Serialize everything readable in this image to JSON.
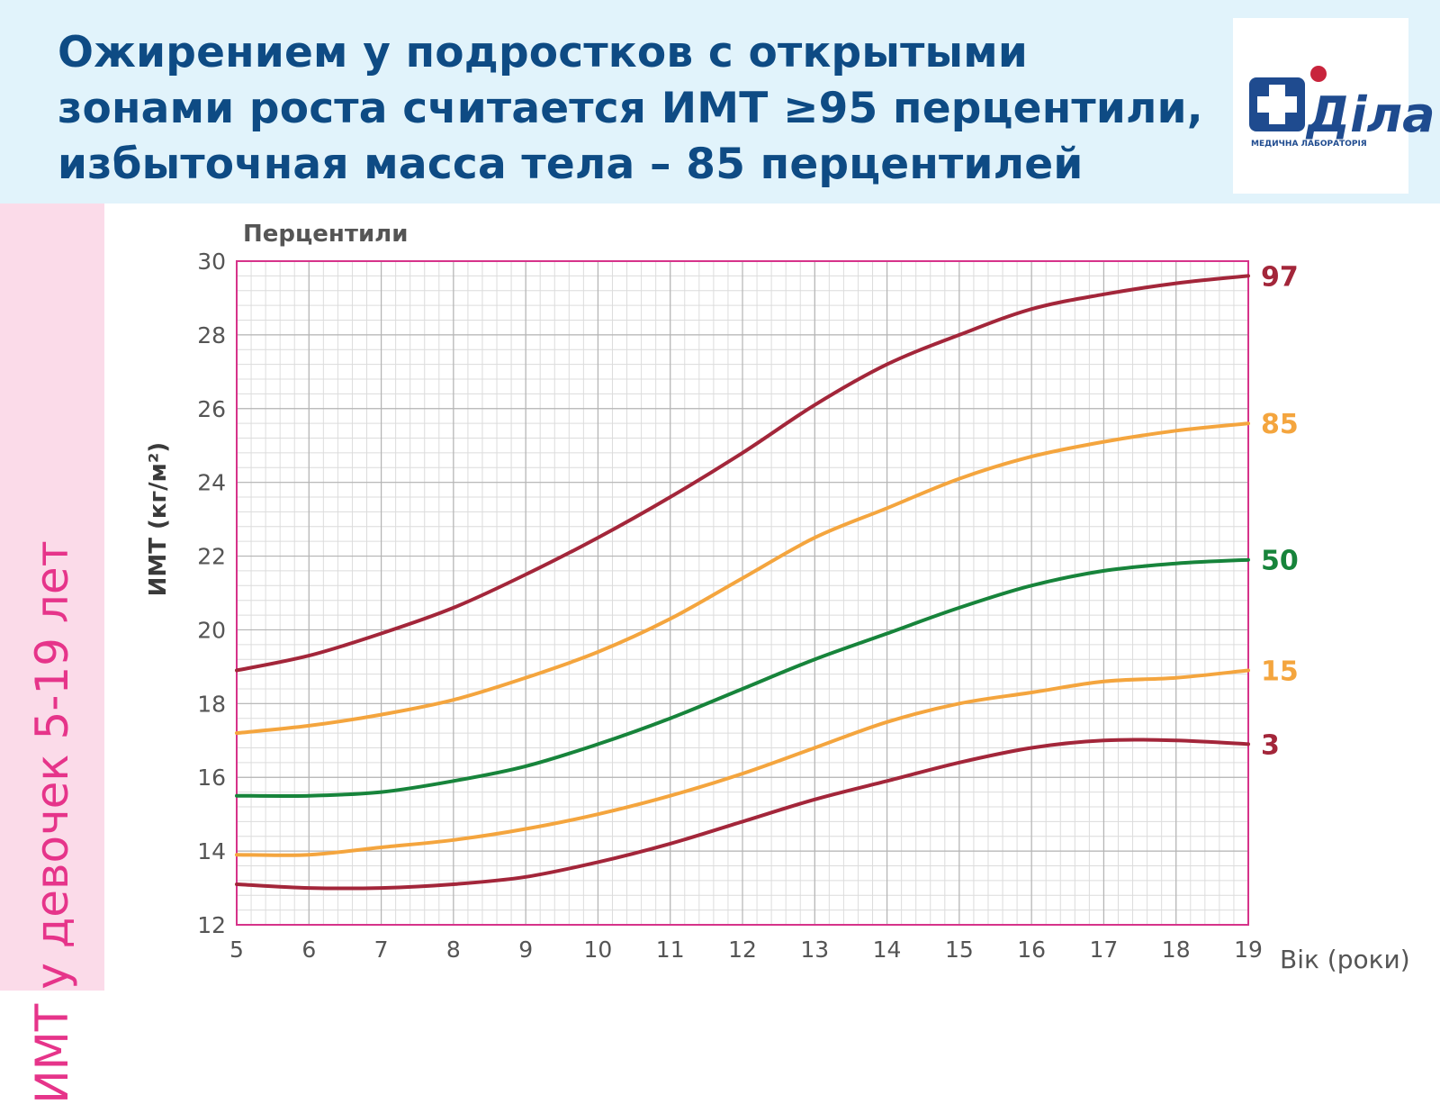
{
  "header": {
    "title_lines": [
      "Ожирением у подростков с открытыми",
      "зонами роста считается ИМТ ≥95 перцентили,",
      "избыточная масса тела – 85 перцентилей"
    ],
    "logo_text": "Діла",
    "logo_subtext": "МЕДИЧНА ЛАБОРАТОРІЯ"
  },
  "side_label": "ИМТ у девочек 5-19 лет",
  "colors": {
    "header_bg": "#e1f3fb",
    "title": "#0e4b84",
    "side_bg": "#fbdbe9",
    "side_text": "#e6348a",
    "frame": "#d6338a",
    "grid": "#c8c8c8",
    "p97": "#a3263a",
    "p85": "#f4a53e",
    "p50": "#17843b",
    "p15": "#f4a53e",
    "p3": "#a3263a"
  },
  "chart_data": {
    "type": "line",
    "title": "",
    "top_label": "Перцентили",
    "xlabel": "Вік (роки)",
    "ylabel": "ИМТ (кг/м²)",
    "xlim": [
      5,
      19
    ],
    "ylim": [
      12,
      30
    ],
    "x_ticks": [
      "5",
      "6",
      "7",
      "8",
      "9",
      "10",
      "11",
      "12",
      "13",
      "14",
      "15",
      "16",
      "17",
      "18",
      "19"
    ],
    "y_ticks": [
      "12",
      "14",
      "16",
      "18",
      "20",
      "22",
      "24",
      "26",
      "28",
      "30"
    ],
    "grid": true,
    "x": [
      5,
      6,
      7,
      8,
      9,
      10,
      11,
      12,
      13,
      14,
      15,
      16,
      17,
      18,
      19
    ],
    "series": [
      {
        "name": "97",
        "color": "#a3263a",
        "values": [
          18.9,
          19.3,
          19.9,
          20.6,
          21.5,
          22.5,
          23.6,
          24.8,
          26.1,
          27.2,
          28.0,
          28.7,
          29.1,
          29.4,
          29.6
        ]
      },
      {
        "name": "85",
        "color": "#f4a53e",
        "values": [
          17.2,
          17.4,
          17.7,
          18.1,
          18.7,
          19.4,
          20.3,
          21.4,
          22.5,
          23.3,
          24.1,
          24.7,
          25.1,
          25.4,
          25.6
        ]
      },
      {
        "name": "50",
        "color": "#17843b",
        "values": [
          15.5,
          15.5,
          15.6,
          15.9,
          16.3,
          16.9,
          17.6,
          18.4,
          19.2,
          19.9,
          20.6,
          21.2,
          21.6,
          21.8,
          21.9
        ]
      },
      {
        "name": "15",
        "color": "#f4a53e",
        "values": [
          13.9,
          13.9,
          14.1,
          14.3,
          14.6,
          15.0,
          15.5,
          16.1,
          16.8,
          17.5,
          18.0,
          18.3,
          18.6,
          18.7,
          18.9
        ]
      },
      {
        "name": "3",
        "color": "#a3263a",
        "values": [
          13.1,
          13.0,
          13.0,
          13.1,
          13.3,
          13.7,
          14.2,
          14.8,
          15.4,
          15.9,
          16.4,
          16.8,
          17.0,
          17.0,
          16.9
        ]
      }
    ]
  }
}
